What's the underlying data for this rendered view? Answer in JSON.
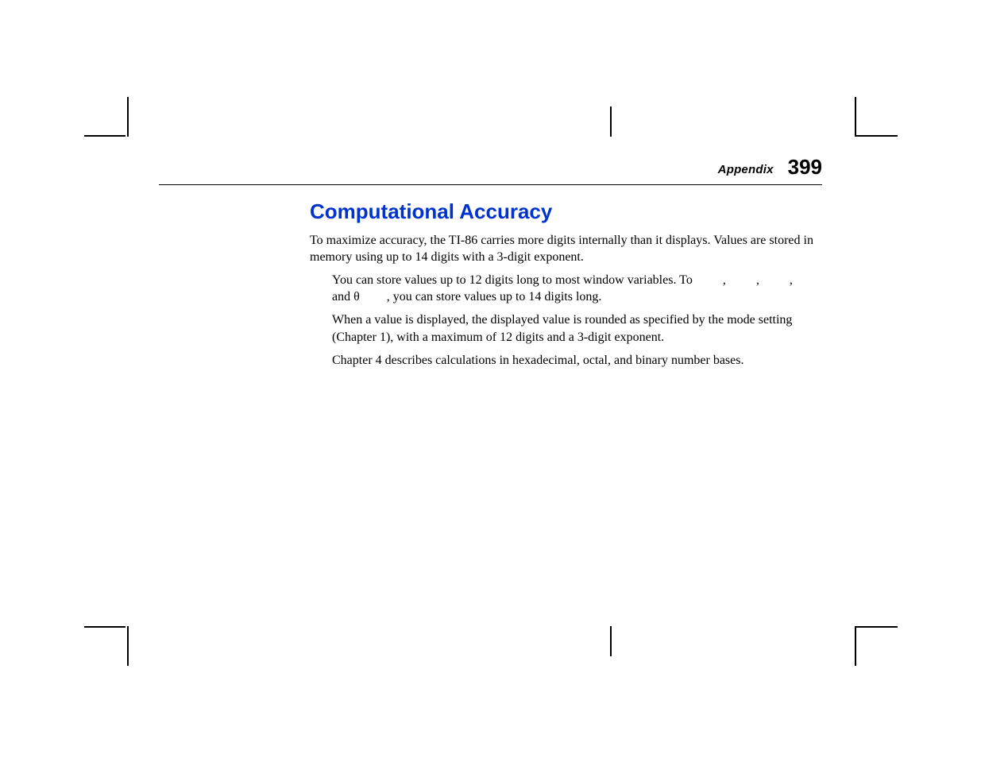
{
  "header": {
    "section_label": "Appendix",
    "page_number": "399"
  },
  "title": {
    "text": "Computational Accuracy",
    "color": "#0033cc"
  },
  "intro": "To maximize accuracy, the TI-86 carries more digits internally than it displays. Values are stored in memory using up to 14 digits with a 3-digit exponent.",
  "bullets": {
    "b1_before": "You can store values up to 12 digits long to most window variables. To ",
    "b1_middle": ", ",
    "b1_after_commas": ", ",
    "b1_and": "and ",
    "b1_theta": "θ",
    "b1_tail": ", you can store values up to 14 digits long.",
    "b2": "When a value is displayed, the displayed value is rounded as specified by the mode setting (Chapter 1), with a maximum of 12 digits and a 3-digit exponent.",
    "b3": "Chapter 4 describes calculations in hexadecimal, octal, and binary number bases."
  }
}
